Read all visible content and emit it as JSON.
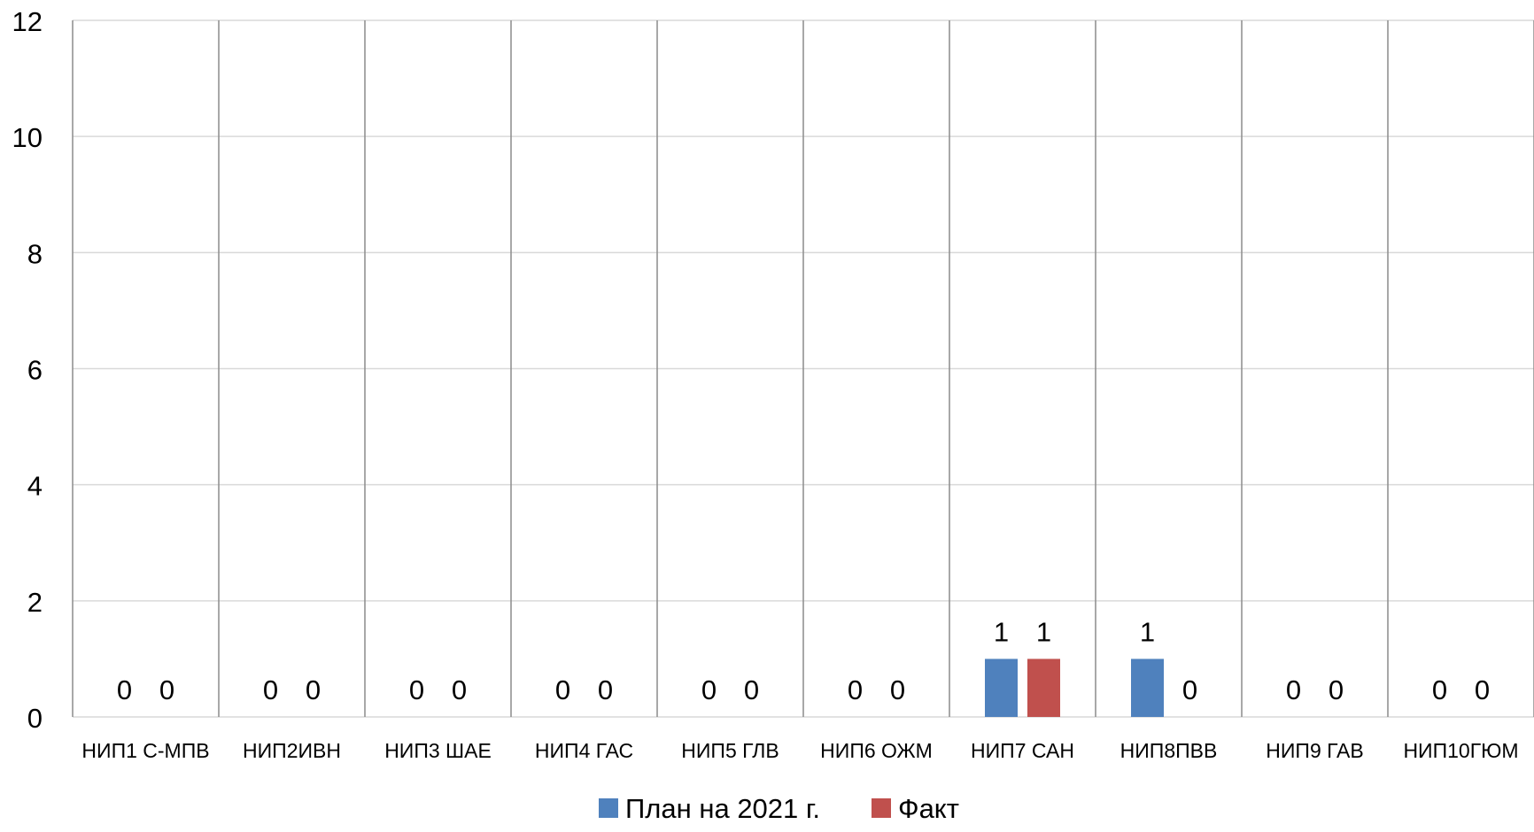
{
  "chart_data": {
    "type": "bar",
    "categories": [
      "НИП1 С-МПВ",
      "НИП2ИВН",
      "НИП3 ШАЕ",
      "НИП4 ГАС",
      "НИП5 ГЛВ",
      "НИП6 ОЖМ",
      "НИП7 САН",
      "НИП8ПВВ",
      "НИП9 ГАВ",
      "НИП10ГЮМ"
    ],
    "series": [
      {
        "name": "План на 2021 г.",
        "color": "#4F81BD",
        "values": [
          0,
          0,
          0,
          0,
          0,
          0,
          1,
          1,
          0,
          0
        ]
      },
      {
        "name": "Факт",
        "color": "#C0504D",
        "values": [
          0,
          0,
          0,
          0,
          0,
          0,
          1,
          0,
          0,
          0
        ]
      }
    ],
    "ylim": [
      0,
      12
    ],
    "yticks": [
      0,
      2,
      4,
      6,
      8,
      10,
      12
    ],
    "grid": true,
    "data_labels": true,
    "legend_position": "bottom",
    "title": "",
    "xlabel": "",
    "ylabel": ""
  }
}
